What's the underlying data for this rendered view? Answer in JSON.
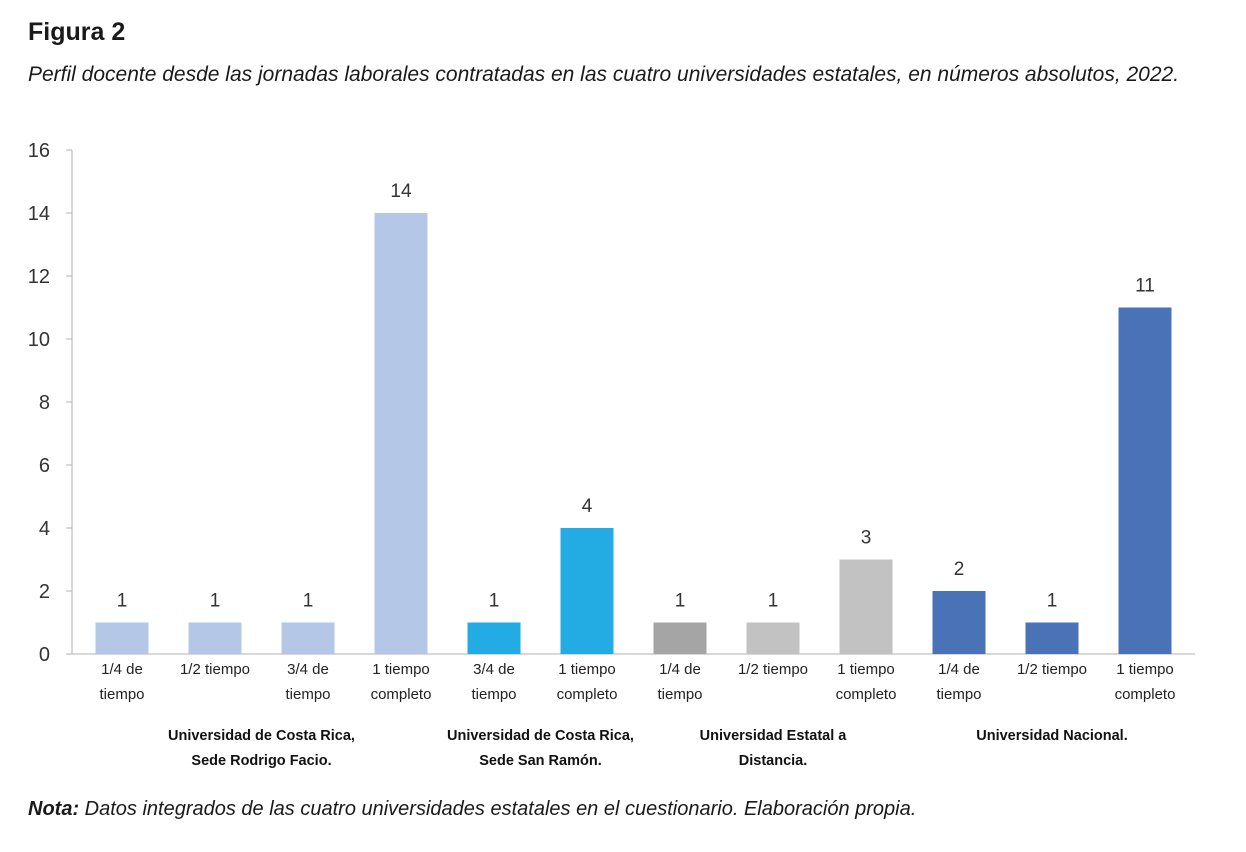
{
  "figure": {
    "label": "Figura 2",
    "caption": "Perfil docente desde las jornadas laborales contratadas en las cuatro universidades estatales, en números absolutos, 2022."
  },
  "note": {
    "prefix": "Nota:",
    "text": " Datos integrados de las cuatro universidades estatales en el cuestionario. Elaboración propia."
  },
  "chart_data": {
    "type": "bar",
    "ylim": [
      0,
      16
    ],
    "yticks": [
      0,
      2,
      4,
      6,
      8,
      10,
      12,
      14,
      16
    ],
    "grid": false,
    "categories": [
      [
        "1/4 de",
        "tiempo"
      ],
      [
        "1/2 tiempo"
      ],
      [
        "3/4 de",
        "tiempo"
      ],
      [
        "1 tiempo",
        "completo"
      ],
      [
        "3/4 de",
        "tiempo"
      ],
      [
        "1 tiempo",
        "completo"
      ],
      [
        "1/4 de",
        "tiempo"
      ],
      [
        "1/2 tiempo"
      ],
      [
        "1 tiempo",
        "completo"
      ],
      [
        "1/4 de",
        "tiempo"
      ],
      [
        "1/2 tiempo"
      ],
      [
        "1 tiempo",
        "completo"
      ]
    ],
    "values": [
      1,
      1,
      1,
      14,
      1,
      4,
      1,
      1,
      3,
      2,
      1,
      11
    ],
    "bar_colors": [
      "#b4c7e7",
      "#b4c7e7",
      "#b4c7e7",
      "#b4c7e7",
      "#23ace3",
      "#23ace3",
      "#a5a5a5",
      "#c2c2c2",
      "#c2c2c2",
      "#4a72b6",
      "#4a72b6",
      "#4a72b6"
    ],
    "groups": [
      {
        "label": [
          "Universidad de Costa Rica,",
          "Sede Rodrigo Facio."
        ],
        "bars": [
          0,
          1,
          2,
          3
        ]
      },
      {
        "label": [
          "Universidad de Costa Rica,",
          "Sede San Ramón."
        ],
        "bars": [
          4,
          5
        ]
      },
      {
        "label": [
          "Universidad Estatal a",
          "Distancia."
        ],
        "bars": [
          6,
          7,
          8
        ]
      },
      {
        "label": [
          "Universidad Nacional."
        ],
        "bars": [
          9,
          10,
          11
        ]
      }
    ]
  }
}
